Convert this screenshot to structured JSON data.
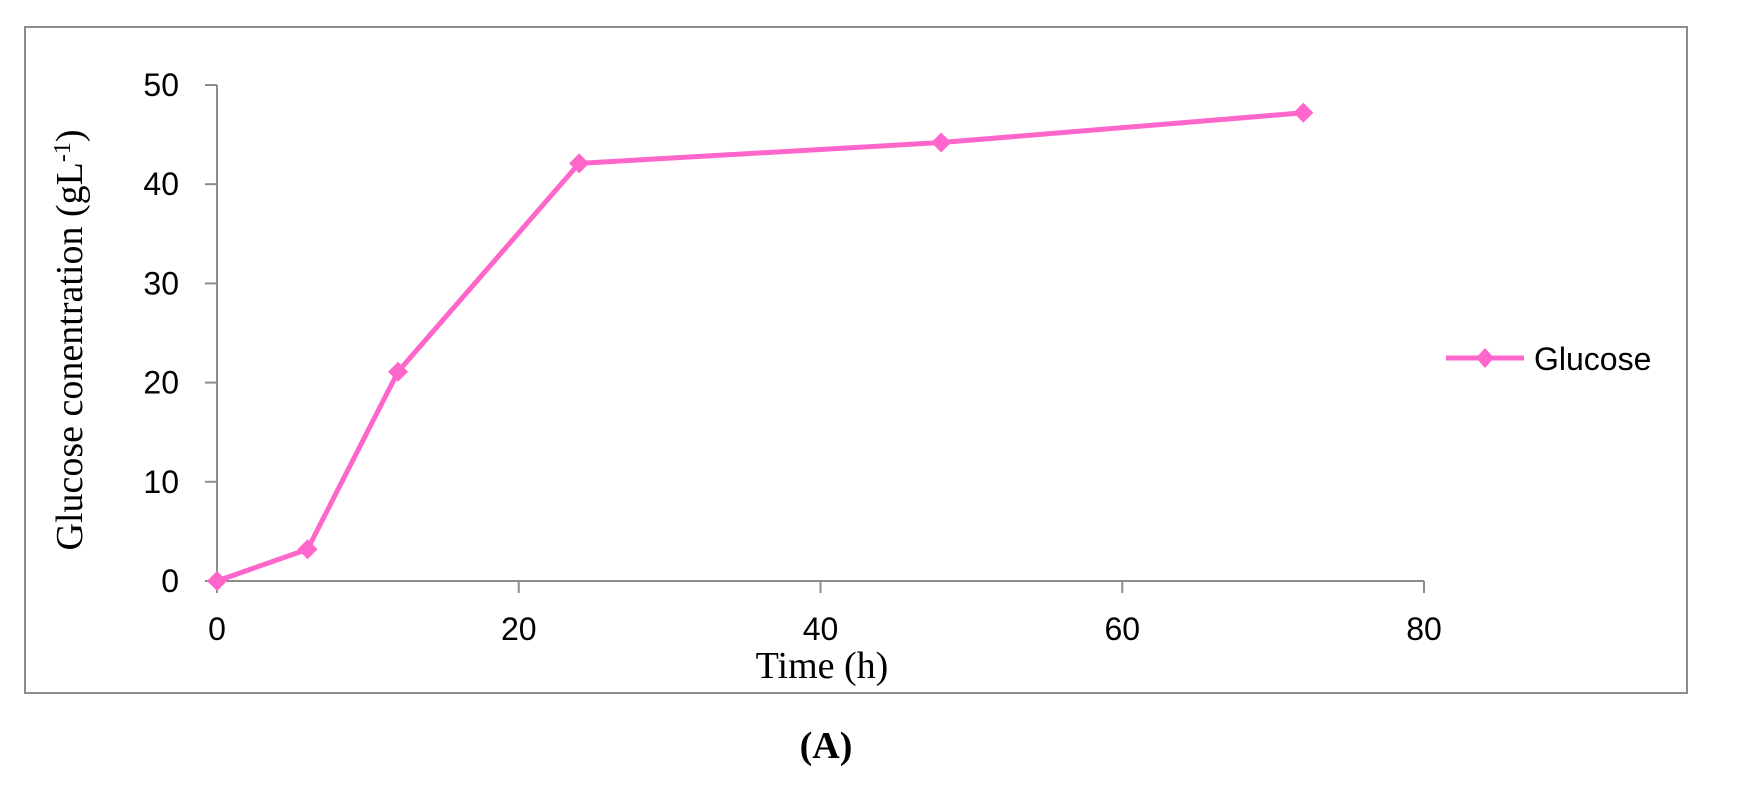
{
  "chart_data": {
    "type": "line",
    "xlabel": "Time (h)",
    "ylabel_main": "Glucose conentration (gL",
    "ylabel_sup": "-1",
    "ylabel_close": ")",
    "xlim": [
      0,
      80
    ],
    "ylim": [
      0,
      50
    ],
    "x_ticks": [
      0,
      20,
      40,
      60,
      80
    ],
    "y_ticks": [
      0,
      10,
      20,
      30,
      40,
      50
    ],
    "grid": false,
    "legend_position": "right",
    "series": [
      {
        "name": "Glucose",
        "color": "#ff66cc",
        "marker": "diamond",
        "x": [
          0,
          6,
          12,
          24,
          48,
          72
        ],
        "y": [
          0,
          3.2,
          21.1,
          42.1,
          44.2,
          47.2
        ]
      }
    ],
    "panel_label": "(A)"
  }
}
